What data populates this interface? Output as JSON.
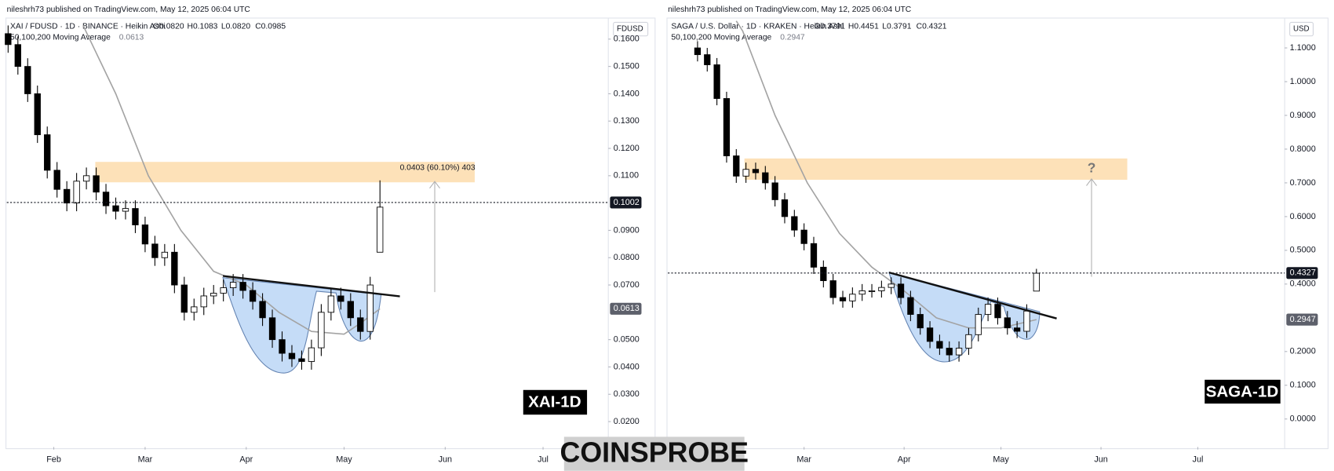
{
  "footer": "COINSPROBE",
  "chart_data": [
    {
      "type": "candlestick",
      "published": "nileshrh73 published on TradingView.com, May 12, 2025 06:04 UTC",
      "symbol": "XAI / FDUSD · 1D · BINANCE · Heikin Ashi",
      "ohlc": [
        "O0.0820",
        "H0.1083",
        "L0.0820",
        "C0.0985"
      ],
      "indicator": "50,100,200 Moving Average",
      "indicator_value": "0.0613",
      "currency": "FDUSD",
      "xlim": [
        16.6,
        201
      ],
      "xticks": [
        {
          "value": 31,
          "label": "Feb"
        },
        {
          "value": 59,
          "label": "Mar"
        },
        {
          "value": 90,
          "label": "Apr"
        },
        {
          "value": 120,
          "label": "May"
        },
        {
          "value": 151,
          "label": "Jun"
        },
        {
          "value": 181,
          "label": "Jul"
        }
      ],
      "ylim": [
        0.0107,
        0.1674
      ],
      "yticks": [
        {
          "value": 0.02,
          "label": "0.0200"
        },
        {
          "value": 0.03,
          "label": "0.0300"
        },
        {
          "value": 0.04,
          "label": "0.0400"
        },
        {
          "value": 0.05,
          "label": "0.0500"
        },
        {
          "value": 0.07,
          "label": "0.0700"
        },
        {
          "value": 0.08,
          "label": "0.0800"
        },
        {
          "value": 0.09,
          "label": "0.0900"
        },
        {
          "value": 0.11,
          "label": "0.1100"
        },
        {
          "value": 0.12,
          "label": "0.1200"
        },
        {
          "value": 0.13,
          "label": "0.1300"
        },
        {
          "value": 0.14,
          "label": "0.1400"
        },
        {
          "value": 0.15,
          "label": "0.1500"
        },
        {
          "value": 0.16,
          "label": "0.1600"
        }
      ],
      "up_color": "#ffffff",
      "down_color": "#000000",
      "candles": {
        "x": [
          17,
          20,
          23,
          26,
          29,
          32,
          35,
          38,
          41,
          44,
          47,
          50,
          53,
          56,
          59,
          62,
          65,
          68,
          71,
          74,
          77,
          80,
          83,
          86,
          89,
          92,
          95,
          98,
          101,
          104,
          107,
          110,
          113,
          116,
          119,
          122,
          125,
          128,
          131
        ],
        "open": [
          0.162,
          0.158,
          0.15,
          0.14,
          0.125,
          0.112,
          0.105,
          0.1,
          0.108,
          0.11,
          0.104,
          0.099,
          0.097,
          0.098,
          0.092,
          0.085,
          0.08,
          0.082,
          0.07,
          0.06,
          0.062,
          0.066,
          0.067,
          0.069,
          0.071,
          0.068,
          0.064,
          0.058,
          0.05,
          0.045,
          0.043,
          0.042,
          0.047,
          0.06,
          0.066,
          0.064,
          0.058,
          0.053,
          0.082
        ],
        "high": [
          0.165,
          0.161,
          0.153,
          0.143,
          0.128,
          0.115,
          0.108,
          0.111,
          0.113,
          0.113,
          0.107,
          0.102,
          0.101,
          0.101,
          0.095,
          0.088,
          0.085,
          0.085,
          0.073,
          0.065,
          0.069,
          0.07,
          0.072,
          0.074,
          0.074,
          0.071,
          0.067,
          0.061,
          0.053,
          0.048,
          0.046,
          0.05,
          0.063,
          0.069,
          0.069,
          0.067,
          0.061,
          0.073,
          0.1083
        ],
        "low": [
          0.155,
          0.147,
          0.137,
          0.122,
          0.109,
          0.102,
          0.097,
          0.097,
          0.105,
          0.101,
          0.096,
          0.094,
          0.094,
          0.089,
          0.082,
          0.077,
          0.077,
          0.067,
          0.057,
          0.057,
          0.059,
          0.063,
          0.064,
          0.066,
          0.065,
          0.061,
          0.055,
          0.047,
          0.042,
          0.04,
          0.039,
          0.039,
          0.044,
          0.057,
          0.061,
          0.055,
          0.05,
          0.05,
          0.082
        ],
        "close": [
          0.158,
          0.15,
          0.14,
          0.125,
          0.112,
          0.105,
          0.1,
          0.108,
          0.11,
          0.104,
          0.099,
          0.097,
          0.098,
          0.092,
          0.085,
          0.08,
          0.082,
          0.07,
          0.06,
          0.062,
          0.066,
          0.067,
          0.069,
          0.071,
          0.068,
          0.064,
          0.058,
          0.05,
          0.045,
          0.043,
          0.042,
          0.047,
          0.06,
          0.066,
          0.064,
          0.058,
          0.053,
          0.07,
          0.0985
        ]
      },
      "ma": {
        "color": "#a3a3a3",
        "x": [
          40,
          50,
          60,
          70,
          80,
          90,
          100,
          110,
          120,
          125,
          131
        ],
        "values": [
          0.165,
          0.14,
          0.11,
          0.09,
          0.075,
          0.07,
          0.06,
          0.053,
          0.052,
          0.056,
          0.0613
        ]
      },
      "last_price": {
        "value": 0.1002,
        "label": "0.1002"
      },
      "ma_price": {
        "value": 0.0613,
        "label": "0.0613"
      },
      "measure_label": "0.0403 (60.10%) 403",
      "watermark": "XAI-1D"
    },
    {
      "type": "candlestick",
      "published": "nileshrh73 published on TradingView.com, May 12, 2025 06:04 UTC",
      "symbol": "SAGA / U.S. Dollar · 1D · KRAKEN · Heikin Ashi",
      "ohlc": [
        "O0.3791",
        "H0.4451",
        "L0.3791",
        "C0.4321"
      ],
      "indicator": "50,100,200 Moving Average",
      "indicator_value": "0.2947",
      "currency": "USD",
      "xlim": [
        16.8,
        207.9
      ],
      "xticks": [
        {
          "value": 59,
          "label": "Mar"
        },
        {
          "value": 90,
          "label": "Apr"
        },
        {
          "value": 120,
          "label": "May"
        },
        {
          "value": 151,
          "label": "Jun"
        },
        {
          "value": 181,
          "label": "Jul"
        }
      ],
      "ylim": [
        -0.083,
        1.186
      ],
      "yticks": [
        {
          "value": 0,
          "label": "0.0000"
        },
        {
          "value": 0.1,
          "label": "0.1000"
        },
        {
          "value": 0.2,
          "label": "0.2000"
        },
        {
          "value": 0.4,
          "label": "0.4000"
        },
        {
          "value": 0.5,
          "label": "0.5000"
        },
        {
          "value": 0.6,
          "label": "0.6000"
        },
        {
          "value": 0.7,
          "label": "0.7000"
        },
        {
          "value": 0.8,
          "label": "0.8000"
        },
        {
          "value": 0.9,
          "label": "0.9000"
        },
        {
          "value": 1.0,
          "label": "1.0000"
        },
        {
          "value": 1.1,
          "label": "1.1000"
        }
      ],
      "up_color": "#ffffff",
      "down_color": "#000000",
      "candles": {
        "x": [
          26,
          29,
          32,
          35,
          38,
          41,
          44,
          47,
          50,
          53,
          56,
          59,
          62,
          65,
          68,
          71,
          74,
          77,
          80,
          83,
          86,
          89,
          92,
          95,
          98,
          101,
          104,
          107,
          110,
          113,
          116,
          119,
          122,
          125,
          128,
          131
        ],
        "open": [
          1.1,
          1.08,
          1.05,
          0.95,
          0.78,
          0.72,
          0.74,
          0.73,
          0.7,
          0.65,
          0.6,
          0.56,
          0.52,
          0.45,
          0.41,
          0.36,
          0.35,
          0.37,
          0.38,
          0.38,
          0.39,
          0.4,
          0.36,
          0.31,
          0.27,
          0.23,
          0.21,
          0.19,
          0.21,
          0.25,
          0.31,
          0.34,
          0.3,
          0.27,
          0.26,
          0.3791
        ],
        "high": [
          1.12,
          1.1,
          1.07,
          0.97,
          0.8,
          0.76,
          0.76,
          0.75,
          0.72,
          0.67,
          0.62,
          0.58,
          0.54,
          0.47,
          0.43,
          0.38,
          0.39,
          0.4,
          0.4,
          0.41,
          0.42,
          0.42,
          0.38,
          0.33,
          0.29,
          0.25,
          0.23,
          0.23,
          0.27,
          0.33,
          0.36,
          0.36,
          0.32,
          0.29,
          0.34,
          0.4451
        ],
        "low": [
          1.06,
          1.03,
          0.93,
          0.76,
          0.7,
          0.7,
          0.71,
          0.68,
          0.63,
          0.58,
          0.54,
          0.5,
          0.43,
          0.39,
          0.34,
          0.33,
          0.33,
          0.35,
          0.36,
          0.36,
          0.37,
          0.34,
          0.29,
          0.25,
          0.21,
          0.19,
          0.17,
          0.17,
          0.19,
          0.23,
          0.29,
          0.28,
          0.25,
          0.24,
          0.24,
          0.3791
        ],
        "close": [
          1.08,
          1.05,
          0.95,
          0.78,
          0.72,
          0.74,
          0.73,
          0.7,
          0.65,
          0.6,
          0.56,
          0.52,
          0.45,
          0.41,
          0.36,
          0.35,
          0.37,
          0.38,
          0.38,
          0.39,
          0.4,
          0.36,
          0.31,
          0.27,
          0.23,
          0.21,
          0.19,
          0.21,
          0.25,
          0.31,
          0.34,
          0.3,
          0.27,
          0.26,
          0.32,
          0.4321
        ]
      },
      "ma": {
        "color": "#a3a3a3",
        "x": [
          38,
          40,
          50,
          60,
          70,
          80,
          90,
          100,
          110,
          120,
          131
        ],
        "values": [
          1.18,
          1.15,
          0.9,
          0.7,
          0.55,
          0.45,
          0.38,
          0.3,
          0.27,
          0.27,
          0.2947
        ]
      },
      "last_price": {
        "value": 0.4327,
        "label": "0.4327"
      },
      "ma_price": {
        "value": 0.2947,
        "label": "0.2947"
      },
      "measure_label": "?",
      "watermark": "SAGA-1D"
    }
  ]
}
